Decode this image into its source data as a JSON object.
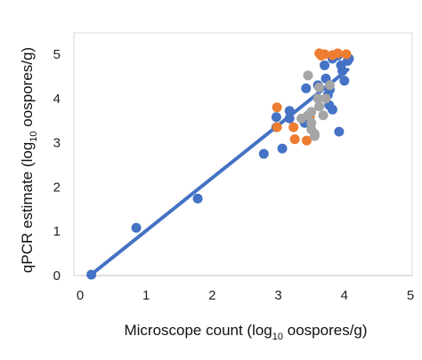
{
  "chart_data": {
    "type": "scatter",
    "xlabel": {
      "pre": "Microscope count (log",
      "sub": "10",
      "post": " oospores/g)"
    },
    "ylabel": {
      "pre": "qPCR estimate (log",
      "sub": "10",
      "post": " oospores/g)"
    },
    "xlim": [
      0,
      5
    ],
    "ylim": [
      0,
      5.5
    ],
    "xticks": [
      0,
      1,
      2,
      3,
      4,
      5
    ],
    "yticks": [
      0,
      1,
      2,
      3,
      4,
      5
    ],
    "grid": false,
    "legend": "none",
    "trendline": {
      "x": [
        0.15,
        4.05
      ],
      "y": [
        0.0,
        4.65
      ],
      "color": "#4472C4"
    },
    "series": [
      {
        "color": "#4472C4",
        "points": [
          [
            0.17,
            0.02
          ],
          [
            0.85,
            1.08
          ],
          [
            1.78,
            1.74
          ],
          [
            2.78,
            2.75
          ],
          [
            2.97,
            3.58
          ],
          [
            2.97,
            3.35
          ],
          [
            3.06,
            2.87
          ],
          [
            3.17,
            3.72
          ],
          [
            3.17,
            3.55
          ],
          [
            3.4,
            3.45
          ],
          [
            3.42,
            4.23
          ],
          [
            3.6,
            4.3
          ],
          [
            3.7,
            4.75
          ],
          [
            3.72,
            4.45
          ],
          [
            3.75,
            4.08
          ],
          [
            3.77,
            3.85
          ],
          [
            3.78,
            4.2
          ],
          [
            3.82,
            3.75
          ],
          [
            3.82,
            4.9
          ],
          [
            3.9,
            4.97
          ],
          [
            3.92,
            3.25
          ],
          [
            3.95,
            4.75
          ],
          [
            3.97,
            4.62
          ],
          [
            4.0,
            4.4
          ],
          [
            4.05,
            4.85
          ],
          [
            4.07,
            4.9
          ]
        ]
      },
      {
        "color": "#ED7D31",
        "points": [
          [
            2.98,
            3.8
          ],
          [
            2.98,
            3.35
          ],
          [
            3.23,
            3.35
          ],
          [
            3.25,
            3.08
          ],
          [
            3.43,
            3.05
          ],
          [
            3.62,
            5.02
          ],
          [
            3.65,
            4.97
          ],
          [
            3.7,
            5.0
          ],
          [
            3.82,
            4.98
          ],
          [
            3.9,
            5.02
          ],
          [
            4.03,
            5.0
          ],
          [
            3.48,
            3.6
          ]
        ]
      },
      {
        "color": "#A5A5A5",
        "points": [
          [
            3.35,
            3.55
          ],
          [
            3.45,
            4.52
          ],
          [
            3.45,
            3.62
          ],
          [
            3.5,
            3.45
          ],
          [
            3.5,
            3.3
          ],
          [
            3.55,
            3.2
          ],
          [
            3.55,
            3.15
          ],
          [
            3.6,
            4.0
          ],
          [
            3.62,
            4.25
          ],
          [
            3.68,
            3.62
          ],
          [
            3.72,
            4.0
          ],
          [
            3.78,
            4.3
          ],
          [
            3.62,
            3.82
          ],
          [
            3.5,
            3.7
          ]
        ]
      }
    ]
  }
}
